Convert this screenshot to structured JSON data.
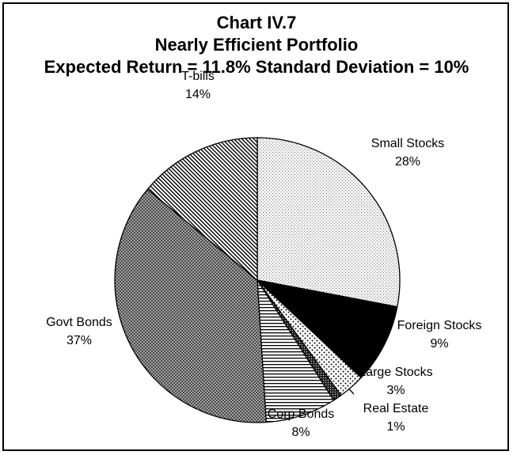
{
  "chart_data": {
    "type": "pie",
    "title_lines": [
      "Chart IV.7",
      "Nearly Efficient Portfolio",
      "Expected Return = 11.8% Standard Deviation = 10%"
    ],
    "categories": [
      "Small Stocks",
      "Foreign Stocks",
      "Large Stocks",
      "Real Estate",
      "Corp Bonds",
      "Govt Bonds",
      "T-bills"
    ],
    "values": [
      28,
      9,
      3,
      1,
      8,
      37,
      14
    ],
    "value_labels": [
      "28%",
      "9%",
      "3%",
      "1%",
      "8%",
      "37%",
      "14%"
    ],
    "patterns": [
      "stipple",
      "solid",
      "dots",
      "dense",
      "horizontal",
      "crosshatch",
      "diagonal"
    ],
    "start_angle": 90,
    "direction": "clockwise"
  }
}
